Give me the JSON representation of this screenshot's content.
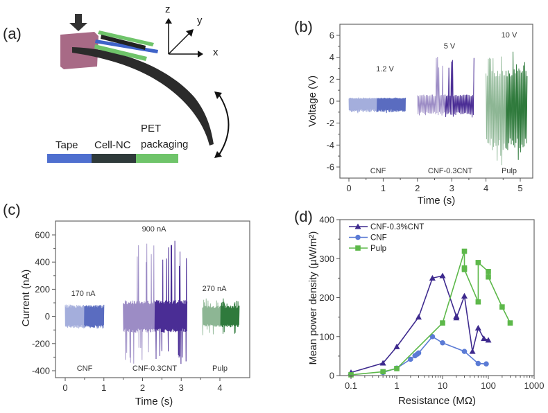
{
  "panel_labels": {
    "a": "(a)",
    "b": "(b)",
    "c": "(c)",
    "d": "(d)"
  },
  "illustration": {
    "axes": {
      "x": "x",
      "y": "y",
      "z": "z"
    },
    "legend": {
      "tape": "Tape",
      "cell_nc": "Cell-NC",
      "pet_line1": "PET",
      "pet_line2": "packaging"
    },
    "colors": {
      "tape": "#4f6fcf",
      "cell_nc": "#2f3a3a",
      "pet": "#6fc46a",
      "block": "#a86a86",
      "beam": "#2b2b2b"
    }
  },
  "chart_data": [
    {
      "id": "b",
      "type": "line",
      "xlabel": "Time (s)",
      "ylabel": "Voltage (V)",
      "xlim": [
        0,
        5
      ],
      "ylim": [
        -6,
        6
      ],
      "xticks": [
        0,
        1,
        2,
        3,
        4,
        5
      ],
      "yticks": [
        -6,
        -4,
        -2,
        0,
        2,
        4,
        6
      ],
      "series": [
        {
          "name": "CNF",
          "peak_label": "1.2 V",
          "t": [
            0,
            1.65
          ],
          "band": [
            -1.0,
            0.3
          ],
          "peaks": [
            -1.1,
            0.35
          ],
          "color": "#5a6cc0"
        },
        {
          "name": "CNF-0.3CNT",
          "peak_label": "5 V",
          "t": [
            2.0,
            3.65
          ],
          "band": [
            -1.3,
            0.6
          ],
          "peaks": [
            -1.5,
            4.3
          ],
          "color": "#4a2d95"
        },
        {
          "name": "Pulp",
          "peak_label": "10 V",
          "t": [
            4.0,
            5.2
          ],
          "band": [
            -4.5,
            3.0
          ],
          "peaks": [
            -6.0,
            4.9
          ],
          "color": "#2f7a3c"
        }
      ]
    },
    {
      "id": "c",
      "type": "line",
      "xlabel": "Time (s)",
      "ylabel": "Current (nA)",
      "xlim": [
        0,
        4
      ],
      "ylim": [
        -400,
        600
      ],
      "xticks": [
        0,
        1,
        2,
        3,
        4
      ],
      "yticks": [
        -400,
        -200,
        0,
        200,
        400,
        600
      ],
      "series": [
        {
          "name": "CNF",
          "peak_label": "170 nA",
          "t": [
            0,
            1.0
          ],
          "band": [
            -85,
            85
          ],
          "peaks": [
            -90,
            90
          ],
          "color": "#5a6cc0"
        },
        {
          "name": "CNF-0.3CNT",
          "peak_label": "900 nA",
          "t": [
            1.5,
            3.15
          ],
          "band": [
            -120,
            120
          ],
          "peaks": [
            -350,
            560
          ],
          "color": "#4a2d95"
        },
        {
          "name": "Pulp",
          "peak_label": "270 nA",
          "t": [
            3.55,
            4.5
          ],
          "band": [
            -80,
            80
          ],
          "peaks": [
            -140,
            135
          ],
          "color": "#2f7a3c"
        }
      ]
    },
    {
      "id": "d",
      "type": "line",
      "xscale": "log",
      "xlabel": "Resistance (MΩ)",
      "ylabel": "Mean power density (µW/m²)",
      "xlim": [
        0.1,
        1000
      ],
      "ylim": [
        0,
        400
      ],
      "xticks": [
        0.1,
        1,
        10,
        100,
        1000
      ],
      "xticklabels": [
        "0.1",
        "1",
        "10",
        "100",
        "1000"
      ],
      "yticks": [
        0,
        100,
        200,
        300,
        400
      ],
      "legend_position": "top-left",
      "series": [
        {
          "name": "CNF-0.3%CNT",
          "marker": "triangle",
          "color": "#3e2a8e",
          "x": [
            0.1,
            0.5,
            1,
            3,
            6,
            10,
            20,
            20,
            30,
            45,
            60,
            80,
            100
          ],
          "y": [
            8,
            32,
            74,
            150,
            250,
            256,
            152,
            148,
            204,
            62,
            122,
            95,
            91
          ]
        },
        {
          "name": "CNF",
          "marker": "circle",
          "color": "#5b7bd5",
          "x": [
            0.5,
            1,
            2,
            2.5,
            2.8,
            3,
            6,
            10,
            30,
            60,
            90
          ],
          "y": [
            8,
            19,
            42,
            51,
            55,
            58,
            100,
            84,
            62,
            31,
            30
          ]
        },
        {
          "name": "Pulp",
          "marker": "square",
          "color": "#5db84a",
          "x": [
            0.1,
            0.5,
            1,
            10,
            30,
            30,
            30,
            60,
            60,
            100,
            100,
            200,
            300
          ],
          "y": [
            2,
            10,
            18,
            135,
            319,
            276,
            272,
            189,
            290,
            267,
            253,
            176,
            135
          ]
        }
      ]
    }
  ]
}
